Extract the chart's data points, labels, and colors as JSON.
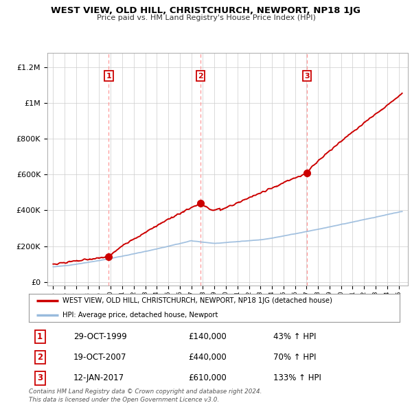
{
  "title": "WEST VIEW, OLD HILL, CHRISTCHURCH, NEWPORT, NP18 1JG",
  "subtitle": "Price paid vs. HM Land Registry's House Price Index (HPI)",
  "background_color": "#ffffff",
  "grid_color": "#cccccc",
  "red_line_color": "#cc0000",
  "blue_line_color": "#99bbdd",
  "dashed_red_color": "#ff9999",
  "yticks": [
    0,
    200000,
    400000,
    600000,
    800000,
    1000000,
    1200000
  ],
  "ytick_labels": [
    "£0",
    "£200K",
    "£400K",
    "£600K",
    "£800K",
    "£1M",
    "£1.2M"
  ],
  "sale_dates": [
    1999.83,
    2007.8,
    2017.04
  ],
  "sale_prices": [
    140000,
    440000,
    610000
  ],
  "sale_labels": [
    "1",
    "2",
    "3"
  ],
  "legend_label_red": "WEST VIEW, OLD HILL, CHRISTCHURCH, NEWPORT, NP18 1JG (detached house)",
  "legend_label_blue": "HPI: Average price, detached house, Newport",
  "table_rows": [
    {
      "num": "1",
      "date": "29-OCT-1999",
      "price": "£140,000",
      "hpi": "43% ↑ HPI"
    },
    {
      "num": "2",
      "date": "19-OCT-2007",
      "price": "£440,000",
      "hpi": "70% ↑ HPI"
    },
    {
      "num": "3",
      "date": "12-JAN-2017",
      "price": "£610,000",
      "hpi": "133% ↑ HPI"
    }
  ],
  "footnote": "Contains HM Land Registry data © Crown copyright and database right 2024.\nThis data is licensed under the Open Government Licence v3.0."
}
